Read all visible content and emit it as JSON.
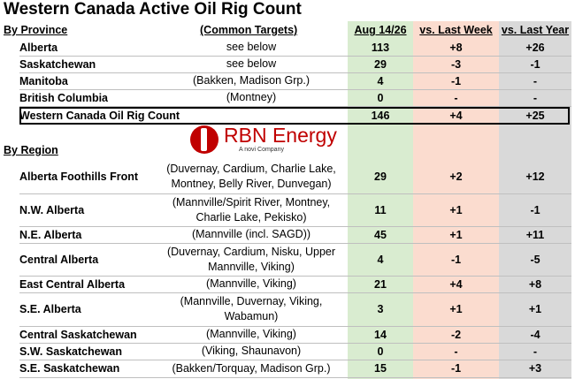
{
  "title": "Western Canada Active Oil Rig Count",
  "colors": {
    "current_col": "#d9ecd0",
    "week_col": "#fbdccf",
    "year_col": "#d9d9d9",
    "brand_red": "#c00000"
  },
  "headers": {
    "by_province": "By Province",
    "common_targets": "(Common Targets)",
    "current": "Aug 14/26",
    "vs_week": "vs. Last Week",
    "vs_year": "vs. Last Year",
    "by_region": "By Region"
  },
  "provinces": [
    {
      "name": "Alberta",
      "targets": "see below",
      "current": "113",
      "vs_week": "+8",
      "vs_year": "+26"
    },
    {
      "name": "Saskatchewan",
      "targets": "see below",
      "current": "29",
      "vs_week": "-3",
      "vs_year": "-1"
    },
    {
      "name": "Manitoba",
      "targets": "(Bakken, Madison Grp.)",
      "current": "4",
      "vs_week": "-1",
      "vs_year": "-"
    },
    {
      "name": "British Columbia",
      "targets": "(Montney)",
      "current": "0",
      "vs_week": "-",
      "vs_year": "-"
    }
  ],
  "total": {
    "name": "Western Canada Oil Rig Count",
    "current": "146",
    "vs_week": "+4",
    "vs_year": "+25"
  },
  "logo": {
    "brand": "RBN Energy",
    "sub": "A novi Company"
  },
  "regions": [
    {
      "name": "Alberta Foothills Front",
      "targets": "(Duvernay, Cardium, Charlie Lake,\nMontney, Belly River, Dunvegan)",
      "current": "29",
      "vs_week": "+2",
      "vs_year": "+12"
    },
    {
      "name": "N.W. Alberta",
      "targets": "(Mannville/Spirit River, Montney,\nCharlie Lake, Pekisko)",
      "current": "11",
      "vs_week": "+1",
      "vs_year": "-1"
    },
    {
      "name": "N.E. Alberta",
      "targets": "(Mannville (incl. SAGD))",
      "current": "45",
      "vs_week": "+1",
      "vs_year": "+11"
    },
    {
      "name": "Central Alberta",
      "targets": "(Duvernay, Cardium, Nisku, Upper\nMannville, Viking)",
      "current": "4",
      "vs_week": "-1",
      "vs_year": "-5"
    },
    {
      "name": "East Central Alberta",
      "targets": "(Mannville, Viking)",
      "current": "21",
      "vs_week": "+4",
      "vs_year": "+8"
    },
    {
      "name": "S.E. Alberta",
      "targets": "(Mannville, Duvernay, Viking,\nWabamun)",
      "current": "3",
      "vs_week": "+1",
      "vs_year": "+1"
    },
    {
      "name": "Central Saskatchewan",
      "targets": "(Mannville, Viking)",
      "current": "14",
      "vs_week": "-2",
      "vs_year": "-4"
    },
    {
      "name": "S.W. Saskatchewan",
      "targets": "(Viking, Shaunavon)",
      "current": "0",
      "vs_week": "-",
      "vs_year": "-"
    },
    {
      "name": "S.E. Saskatchewan",
      "targets": "(Bakken/Torquay, Madison Grp.)",
      "current": "15",
      "vs_week": "-1",
      "vs_year": "+3"
    }
  ]
}
